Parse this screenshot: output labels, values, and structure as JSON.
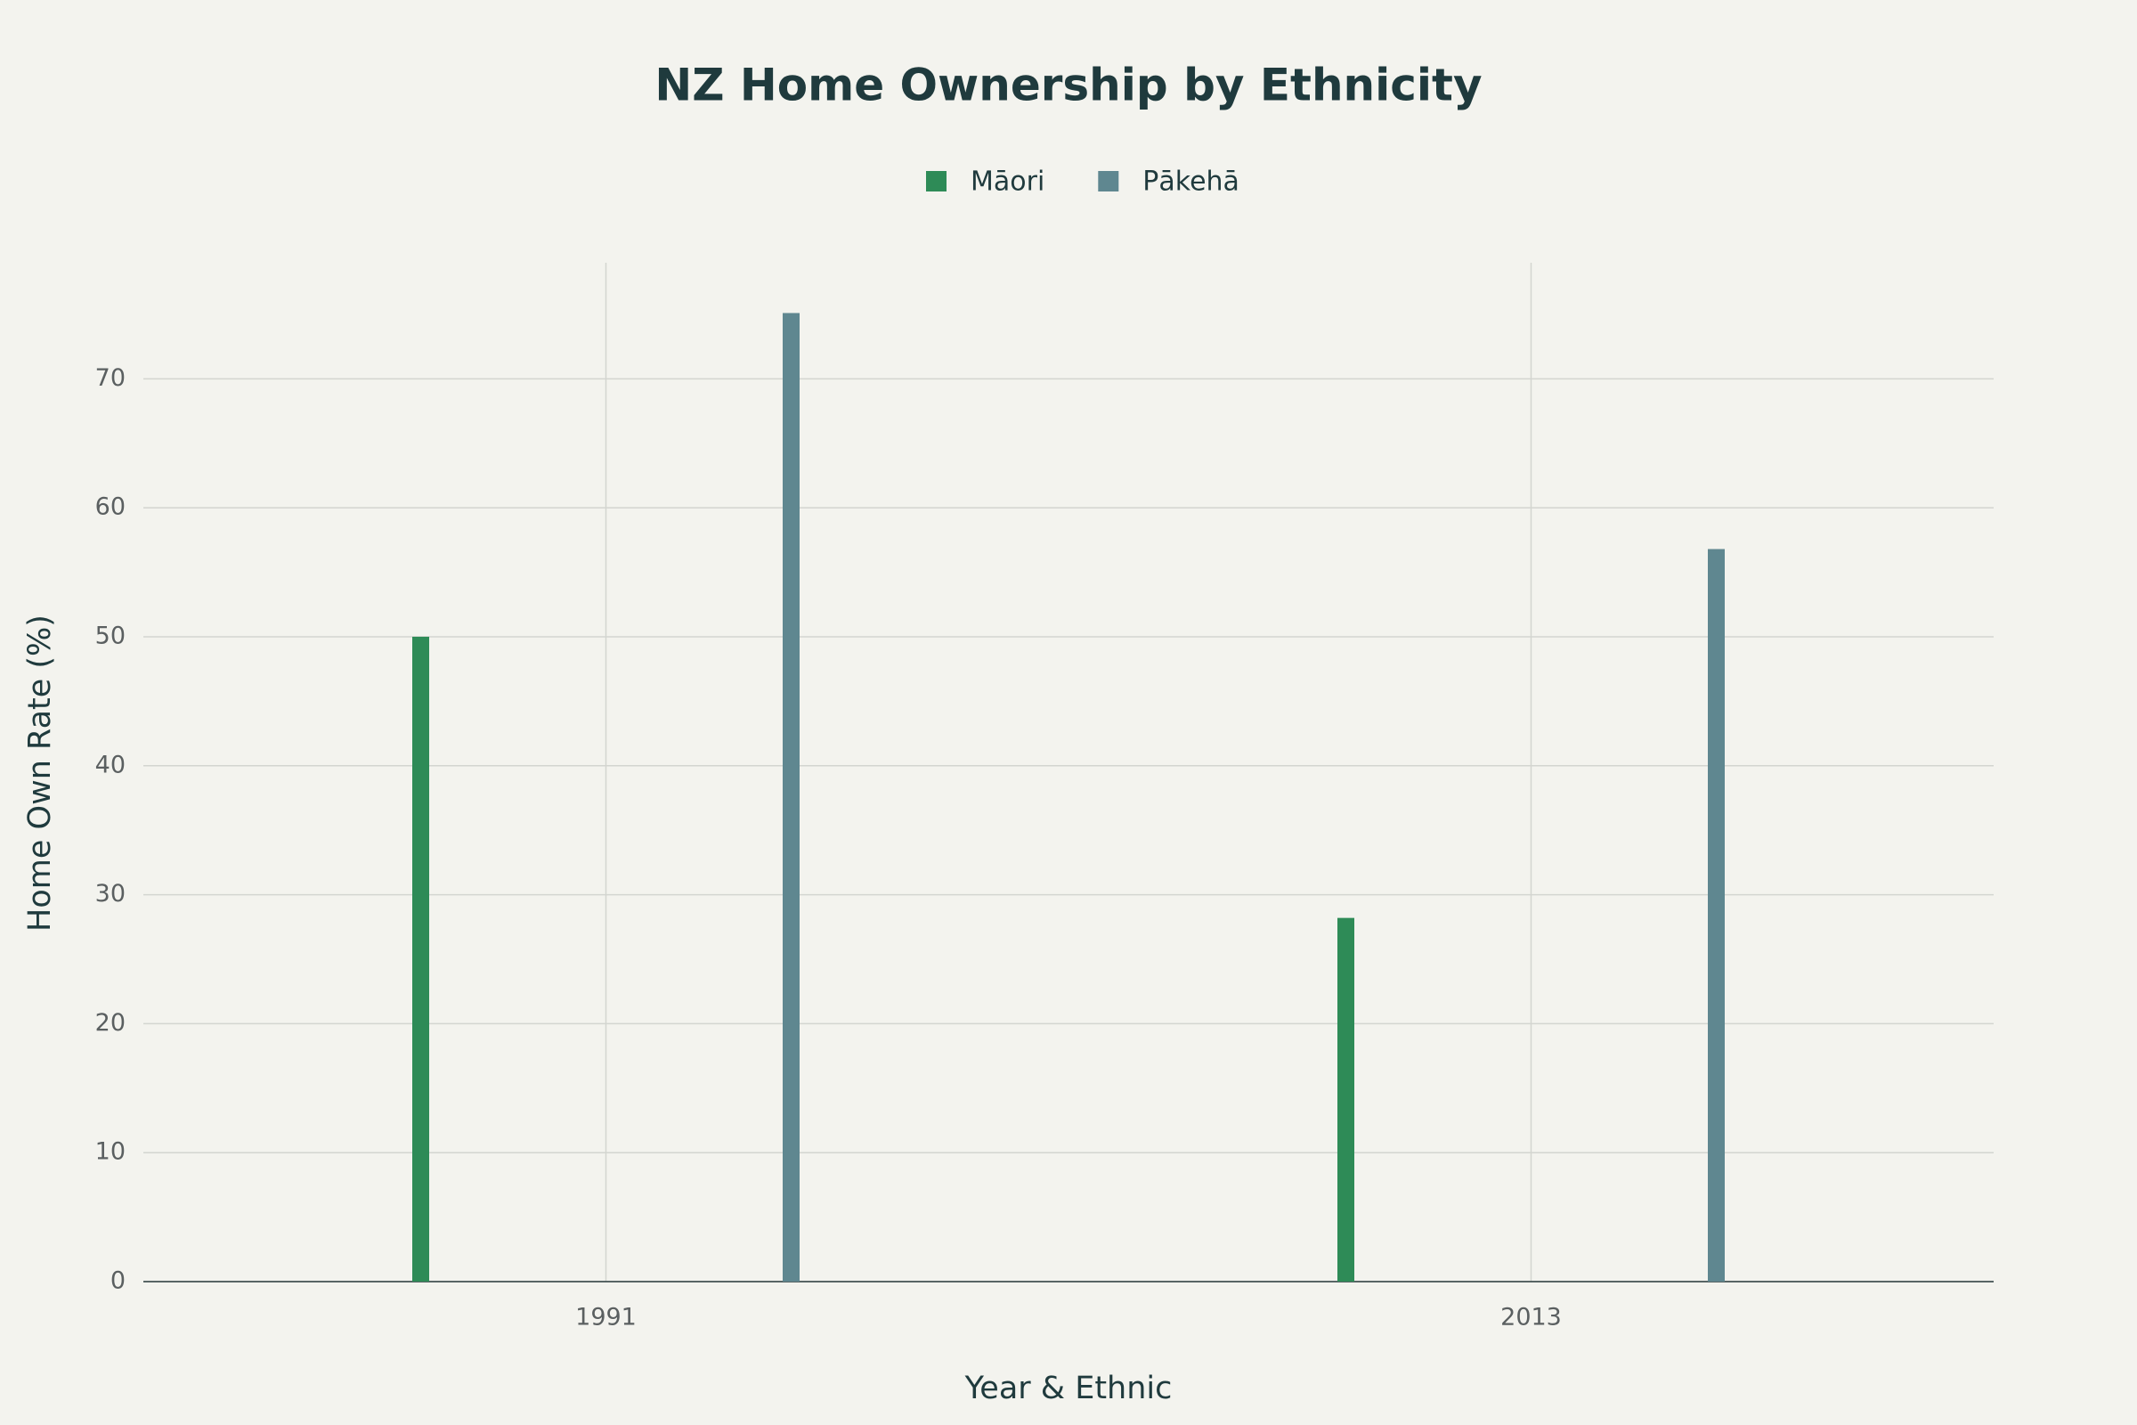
{
  "chart_data": {
    "type": "bar",
    "title": "NZ Home Ownership by Ethnicity",
    "x_label": "Year & Ethnic",
    "y_label": "Home Own Rate (%)",
    "x": [
      1991,
      2013
    ],
    "series": [
      {
        "name": "Māori",
        "color": "#2e8b57",
        "values": [
          50,
          28.2
        ]
      },
      {
        "name": "Pākehā",
        "color": "#5f8790",
        "values": [
          75.1,
          56.8
        ]
      }
    ],
    "xlim": [
      1980,
      2024
    ],
    "xticks": [
      1991,
      2013
    ],
    "ylim": [
      0,
      79
    ],
    "yticks": [
      0,
      10,
      20,
      30,
      40,
      50,
      60,
      70
    ],
    "grid": true,
    "legend": "top"
  }
}
